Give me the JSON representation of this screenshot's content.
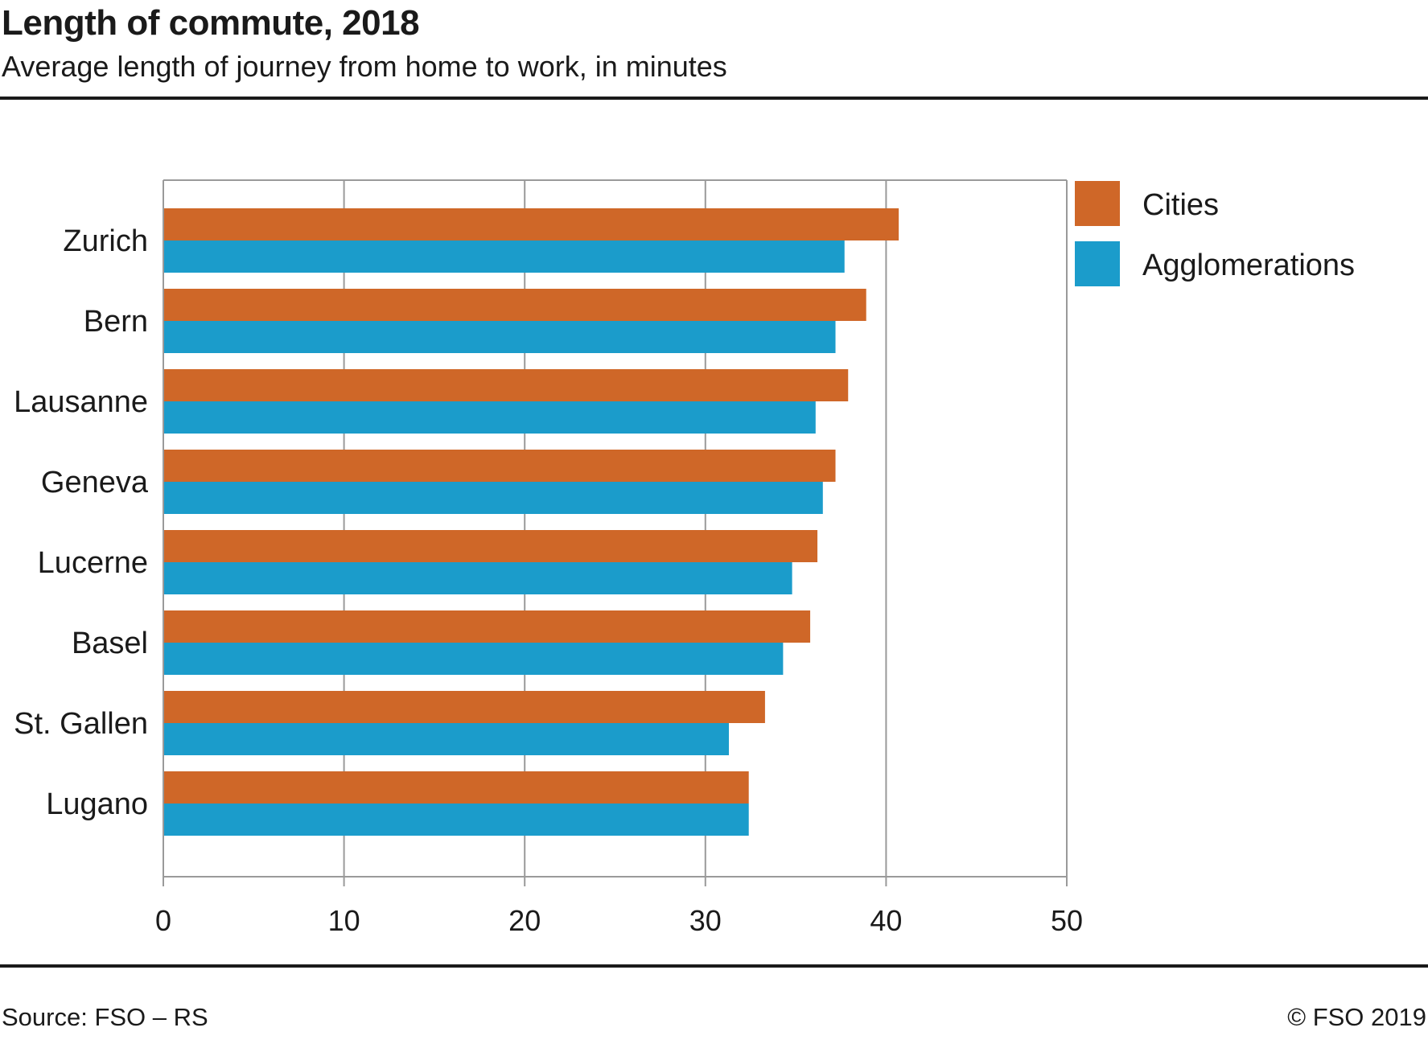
{
  "header": {
    "title": "Length of commute, 2018",
    "subtitle": "Average length of journey from home to work, in minutes"
  },
  "footer": {
    "source": "Source: FSO – RS",
    "copyright": "© FSO 2019"
  },
  "colors": {
    "cities": "#cf6728",
    "agglomerations": "#1b9ccb",
    "grid": "#9a9a9a",
    "text": "#1a1a1a"
  },
  "chart_data": {
    "type": "bar",
    "orientation": "horizontal",
    "title": "Length of commute, 2018",
    "subtitle": "Average length of journey from home to work, in minutes",
    "xlabel": "",
    "ylabel": "",
    "xlim": [
      0,
      50
    ],
    "ticks": [
      "0",
      "10",
      "20",
      "30",
      "40",
      "50"
    ],
    "tick_values": [
      0,
      10,
      20,
      30,
      40,
      50
    ],
    "grid": true,
    "legend_position": "right",
    "categories": [
      "Zurich",
      "Bern",
      "Lausanne",
      "Geneva",
      "Lucerne",
      "Basel",
      "St. Gallen",
      "Lugano"
    ],
    "series": [
      {
        "name": "Cities",
        "color": "#cf6728",
        "values": [
          40.7,
          38.9,
          37.9,
          37.2,
          36.2,
          35.8,
          33.3,
          32.4
        ]
      },
      {
        "name": "Agglomerations",
        "color": "#1b9ccb",
        "values": [
          37.7,
          37.2,
          36.1,
          36.5,
          34.8,
          34.3,
          31.3,
          32.4
        ]
      }
    ]
  }
}
